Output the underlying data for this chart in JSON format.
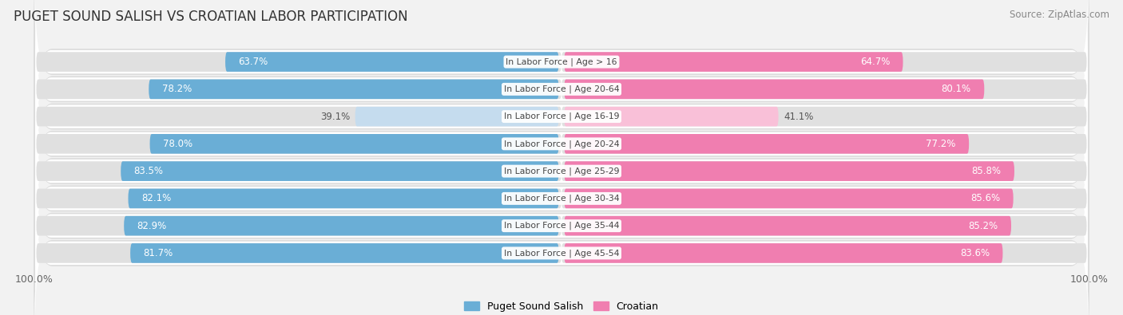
{
  "title": "PUGET SOUND SALISH VS CROATIAN LABOR PARTICIPATION",
  "source": "Source: ZipAtlas.com",
  "categories": [
    "In Labor Force | Age > 16",
    "In Labor Force | Age 20-64",
    "In Labor Force | Age 16-19",
    "In Labor Force | Age 20-24",
    "In Labor Force | Age 25-29",
    "In Labor Force | Age 30-34",
    "In Labor Force | Age 35-44",
    "In Labor Force | Age 45-54"
  ],
  "left_values": [
    63.7,
    78.2,
    39.1,
    78.0,
    83.5,
    82.1,
    82.9,
    81.7
  ],
  "right_values": [
    64.7,
    80.1,
    41.1,
    77.2,
    85.8,
    85.6,
    85.2,
    83.6
  ],
  "left_color": "#6aaed6",
  "right_color": "#f07eb0",
  "left_light_color": "#c5dcee",
  "right_light_color": "#f9c0d8",
  "left_label": "Puget Sound Salish",
  "right_label": "Croatian",
  "bg_color": "#f2f2f2",
  "row_bg_color": "#e4e4e4",
  "row_alt_bg_color": "#ffffff",
  "max_value": 100.0,
  "title_fontsize": 12,
  "bar_height": 0.72,
  "axis_label_bottom": "100.0%"
}
